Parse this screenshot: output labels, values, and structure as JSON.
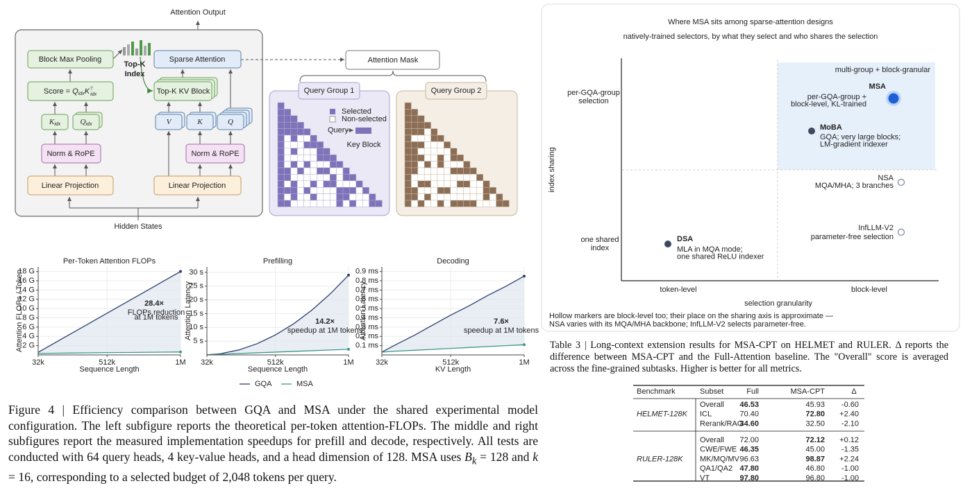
{
  "architecture": {
    "output": "Attention Output",
    "input": "Hidden States",
    "block_max_pooling": "Block Max Pooling",
    "score": {
      "prefix": "Score = ",
      "q": "Q",
      "q_sub": "idx",
      "k": "K",
      "k_sup": "⊤",
      "k_sub": "idx"
    },
    "k_idx": {
      "symbol": "K",
      "sub": "idx"
    },
    "q_idx": {
      "symbol": "Q",
      "sub": "idx"
    },
    "norm_rope": [
      "Norm & RoPE",
      "Norm & RoPE"
    ],
    "linear_projection": [
      "Linear Projection",
      "Linear Projection"
    ],
    "top_k_index": [
      "Top-K",
      "Index"
    ],
    "sparse_attention": "Sparse Attention",
    "top_k_kv_block": "Top-K KV Block",
    "v": "V",
    "k": "K",
    "q": "Q",
    "attention_mask": "Attention Mask",
    "query_groups": [
      "Query Group 1",
      "Query Group 2"
    ],
    "legend": {
      "selected": "Selected",
      "non_selected": "Non-selected",
      "query": "Query",
      "key_block": "Key Block"
    }
  },
  "chart_data": [
    {
      "type": "line",
      "title": "Per-Token Attention FLOPs",
      "x_label": "Sequence Length",
      "y_label": "Attention FLOPs / Token",
      "x": [
        32,
        128,
        256,
        384,
        512,
        640,
        768,
        896,
        1024
      ],
      "xlim": [
        32,
        1024
      ],
      "xticks": [
        {
          "value": 32,
          "label": "32k"
        },
        {
          "value": 512,
          "label": "512k"
        },
        {
          "value": 1024,
          "label": "1M"
        }
      ],
      "ylim": [
        0,
        19
      ],
      "yticks": [
        {
          "value": 2,
          "label": "2 G"
        },
        {
          "value": 4,
          "label": "4 G"
        },
        {
          "value": 6,
          "label": "6 G"
        },
        {
          "value": 8,
          "label": "8 G"
        },
        {
          "value": 10,
          "label": "10 G"
        },
        {
          "value": 12,
          "label": "12 G"
        },
        {
          "value": 14,
          "label": "14 G"
        },
        {
          "value": 16,
          "label": "16 G"
        },
        {
          "value": 18,
          "label": "18 G"
        }
      ],
      "grid": true,
      "series": [
        {
          "name": "GQA",
          "color": "#2b3f6c",
          "values": [
            0.56,
            2.25,
            4.5,
            6.75,
            9,
            11.25,
            13.5,
            15.75,
            18
          ]
        },
        {
          "name": "MSA",
          "color": "#3a9988",
          "values": [
            0.3,
            0.35,
            0.4,
            0.45,
            0.5,
            0.52,
            0.56,
            0.6,
            0.63
          ]
        }
      ],
      "annotation": {
        "headline": "28.4×",
        "note": [
          "FLOPs reduction",
          "at 1M tokens"
        ]
      }
    },
    {
      "type": "line",
      "title": "Prefilling",
      "x_label": "Sequence Length",
      "y_label": "Attention Latency",
      "x": [
        32,
        128,
        256,
        384,
        512,
        640,
        768,
        896,
        1024
      ],
      "xlim": [
        32,
        1024
      ],
      "xticks": [
        {
          "value": 32,
          "label": "32k"
        },
        {
          "value": 512,
          "label": "512k"
        },
        {
          "value": 1024,
          "label": "1M"
        }
      ],
      "ylim": [
        0,
        32
      ],
      "yticks": [
        {
          "value": 5,
          "label": "5 s"
        },
        {
          "value": 10,
          "label": "10 s"
        },
        {
          "value": 15,
          "label": "15 s"
        },
        {
          "value": 20,
          "label": "20 s"
        },
        {
          "value": 25,
          "label": "25 s"
        },
        {
          "value": 30,
          "label": "30 s"
        }
      ],
      "grid": true,
      "series": [
        {
          "name": "GQA",
          "color": "#2b3f6c",
          "values": [
            0.03,
            0.45,
            1.81,
            4.08,
            7.25,
            11.33,
            16.31,
            22.2,
            29
          ]
        },
        {
          "name": "MSA",
          "color": "#3a9988",
          "values": [
            0.06,
            0.26,
            0.51,
            0.77,
            1.02,
            1.28,
            1.53,
            1.79,
            2.04
          ]
        }
      ],
      "annotation": {
        "headline": "14.2×",
        "note": [
          "speedup at 1M tokens"
        ]
      }
    },
    {
      "type": "line",
      "title": "Decoding",
      "x_label": "KV Length",
      "y_label": "Attention Latency",
      "x": [
        32,
        128,
        256,
        384,
        512,
        640,
        768,
        896,
        1024
      ],
      "xlim": [
        32,
        1024
      ],
      "xticks": [
        {
          "value": 32,
          "label": "32k"
        },
        {
          "value": 512,
          "label": "512k"
        },
        {
          "value": 1024,
          "label": "1M"
        }
      ],
      "ylim": [
        0,
        0.95
      ],
      "yticks": [
        {
          "value": 0.1,
          "label": "0.1 ms"
        },
        {
          "value": 0.2,
          "label": "0.2 ms"
        },
        {
          "value": 0.3,
          "label": "0.3 ms"
        },
        {
          "value": 0.4,
          "label": "0.4 ms"
        },
        {
          "value": 0.5,
          "label": "0.5 ms"
        },
        {
          "value": 0.6,
          "label": "0.6 ms"
        },
        {
          "value": 0.7,
          "label": "0.7 ms"
        },
        {
          "value": 0.8,
          "label": "0.8 ms"
        },
        {
          "value": 0.9,
          "label": "0.9 ms"
        }
      ],
      "grid": true,
      "series": [
        {
          "name": "GQA",
          "color": "#2b3f6c",
          "values": [
            0.03,
            0.11,
            0.21,
            0.32,
            0.43,
            0.53,
            0.64,
            0.74,
            0.85
          ]
        },
        {
          "name": "MSA",
          "color": "#3a9988",
          "values": [
            0.03,
            0.04,
            0.05,
            0.06,
            0.07,
            0.08,
            0.09,
            0.1,
            0.11
          ]
        }
      ],
      "annotation": {
        "headline": "7.6×",
        "note": [
          "speedup at 1M tokens"
        ]
      }
    }
  ],
  "figure4_caption": {
    "text": "Figure 4 | Efficiency comparison between GQA and MSA under the shared experimental model configuration. The left subfigure reports the theoretical per-token attention-FLOPs. The middle and right subfigures report the measured implementation speedups for prefill and decode, respectively. All tests are conducted with 64 query heads, 4 key-value heads, and a head dimension of 128. MSA uses ",
    "b": "B",
    "b_sub": "k",
    "mid": " = 128 and ",
    "k": "k",
    "rest": " = 16, corresponding to a selected budget of 2,048 tokens per query."
  },
  "design_map": {
    "title": "Where MSA sits among sparse-attention designs",
    "subtitle": "natively-trained selectors, by what they select and who shares the selection",
    "x_label": "selection granularity",
    "y_label": "index sharing",
    "x_categories": [
      "token-level",
      "block-level"
    ],
    "y_categories": [
      [
        "one shared",
        "index"
      ],
      [
        "per-GQA-group",
        "selection"
      ]
    ],
    "region_label": "multi-group + block-granular",
    "points": [
      {
        "name": "MSA",
        "description": [
          "per-GQA-group +",
          "block-level, KL-trained"
        ],
        "marker": "highlight"
      },
      {
        "name": "MoBA",
        "description": [
          "GQA; very large blocks;",
          "LM-gradient indexer"
        ],
        "marker": "filled"
      },
      {
        "name": "NSA",
        "description": [
          "MQA/MHA; 3 branches"
        ],
        "marker": "hollow"
      },
      {
        "name": "InfLLM-V2",
        "description": [
          "parameter-free selection"
        ],
        "marker": "hollow"
      },
      {
        "name": "DSA",
        "description": [
          "MLA in MQA mode;",
          "one shared ReLU indexer"
        ],
        "marker": "filled"
      }
    ],
    "footnote": [
      "Hollow markers are block-level too; their place on the sharing axis is approximate —",
      "NSA varies with its MQA/MHA backbone; InfLLM-V2 selects parameter-free."
    ]
  },
  "table3": {
    "caption": "Table 3 | Long-context extension results for MSA-CPT on HELMET and RULER. Δ reports the difference between MSA-CPT and the Full-Attention baseline. The \"Overall\" score is averaged across the fine-grained subtasks. Higher is better for all metrics.",
    "header": [
      "Benchmark",
      "Subset",
      "Full",
      "MSA-CPT",
      "Δ"
    ],
    "groups": [
      {
        "benchmark": "HELMET-128K",
        "rows": [
          {
            "cells": [
              "Overall",
              "46.53",
              "45.93",
              "-0.60"
            ],
            "bold_column": 1
          },
          {
            "cells": [
              "ICL",
              "70.40",
              "72.80",
              "+2.40"
            ],
            "bold_column": 2
          },
          {
            "cells": [
              "Rerank/RAG",
              "34.60",
              "32.50",
              "-2.10"
            ],
            "bold_column": 1
          }
        ]
      },
      {
        "benchmark": "RULER-128K",
        "rows": [
          {
            "cells": [
              "Overall",
              "72.00",
              "72.12",
              "+0.12"
            ],
            "bold_column": 2
          },
          {
            "cells": [
              "CWE/FWE",
              "46.35",
              "45.00",
              "-1.35"
            ],
            "bold_column": 1
          },
          {
            "cells": [
              "MK/MQ/MV",
              "96.63",
              "98.87",
              "+2.24"
            ],
            "bold_column": 2
          },
          {
            "cells": [
              "QA1/QA2",
              "47.80",
              "46.80",
              "-1.00"
            ],
            "bold_column": 1
          },
          {
            "cells": [
              "VT",
              "97.80",
              "96.80",
              "-1.00"
            ],
            "bold_column": 1
          }
        ]
      }
    ]
  }
}
